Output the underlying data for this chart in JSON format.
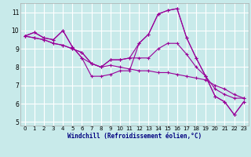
{
  "xlabel": "Windchill (Refroidissement éolien,°C)",
  "ylabel": "",
  "background_color": "#c8eaea",
  "line_color": "#990099",
  "grid_color": "#ffffff",
  "xlim": [
    -0.5,
    23.5
  ],
  "ylim": [
    4.8,
    11.5
  ],
  "yticks": [
    5,
    6,
    7,
    8,
    9,
    10,
    11
  ],
  "xticks": [
    0,
    1,
    2,
    3,
    4,
    5,
    6,
    7,
    8,
    9,
    10,
    11,
    12,
    13,
    14,
    15,
    16,
    17,
    18,
    19,
    20,
    21,
    22,
    23
  ],
  "series": [
    [
      9.7,
      9.9,
      9.6,
      9.5,
      10.0,
      9.1,
      8.5,
      7.5,
      7.5,
      7.6,
      7.8,
      7.8,
      9.3,
      9.8,
      10.9,
      11.1,
      11.2,
      9.6,
      8.5,
      7.5,
      6.4,
      6.1,
      5.4,
      6.1
    ],
    [
      9.7,
      9.9,
      9.6,
      9.5,
      10.0,
      9.1,
      8.5,
      8.2,
      8.0,
      8.4,
      8.4,
      8.5,
      9.3,
      9.8,
      10.9,
      11.1,
      11.2,
      9.6,
      8.5,
      7.5,
      6.4,
      6.1,
      5.4,
      6.1
    ],
    [
      9.7,
      9.6,
      9.5,
      9.3,
      9.2,
      9.0,
      8.8,
      8.2,
      8.0,
      8.4,
      8.4,
      8.5,
      8.5,
      8.5,
      9.0,
      9.3,
      9.3,
      8.7,
      8.0,
      7.5,
      6.8,
      6.5,
      6.3,
      6.3
    ],
    [
      9.7,
      9.6,
      9.5,
      9.3,
      9.2,
      9.0,
      8.8,
      8.2,
      8.0,
      8.1,
      8.0,
      7.9,
      7.8,
      7.8,
      7.7,
      7.7,
      7.6,
      7.5,
      7.4,
      7.3,
      7.0,
      6.8,
      6.5,
      6.3
    ]
  ]
}
